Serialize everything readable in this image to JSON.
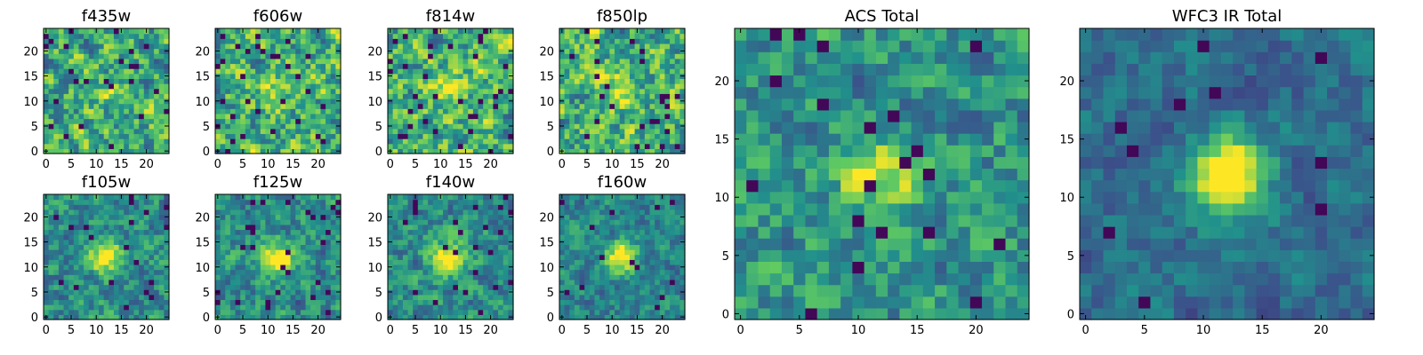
{
  "figure": {
    "colormap": [
      "#440154",
      "#3b528b",
      "#21918c",
      "#5ec962",
      "#fde725"
    ],
    "background": "#ffffff"
  },
  "chart_data": [
    {
      "type": "heatmap",
      "title": "f435w",
      "size": 25,
      "xlim": [
        0,
        25
      ],
      "ylim": [
        0,
        25
      ],
      "xticks": [
        "0",
        "5",
        "10",
        "15",
        "20"
      ],
      "yticks": [
        "0",
        "5",
        "10",
        "15",
        "20"
      ],
      "seed": 11,
      "blob": 0.15,
      "noise": 1.0,
      "low": 0.03
    },
    {
      "type": "heatmap",
      "title": "f606w",
      "size": 25,
      "xlim": [
        0,
        25
      ],
      "ylim": [
        0,
        25
      ],
      "xticks": [
        "0",
        "5",
        "10",
        "15",
        "20"
      ],
      "yticks": [
        "0",
        "5",
        "10",
        "15",
        "20"
      ],
      "seed": 23,
      "blob": 0.25,
      "noise": 1.0,
      "low": 0.04
    },
    {
      "type": "heatmap",
      "title": "f814w",
      "size": 25,
      "xlim": [
        0,
        25
      ],
      "ylim": [
        0,
        25
      ],
      "xticks": [
        "0",
        "5",
        "10",
        "15",
        "20"
      ],
      "yticks": [
        "0",
        "5",
        "10",
        "15",
        "20"
      ],
      "seed": 37,
      "blob": 0.35,
      "noise": 1.0,
      "low": 0.05
    },
    {
      "type": "heatmap",
      "title": "f850lp",
      "size": 25,
      "xlim": [
        0,
        25
      ],
      "ylim": [
        0,
        25
      ],
      "xticks": [
        "0",
        "5",
        "10",
        "15",
        "20"
      ],
      "yticks": [
        "0",
        "5",
        "10",
        "15",
        "20"
      ],
      "seed": 41,
      "blob": 0.35,
      "noise": 1.0,
      "low": 0.05
    },
    {
      "type": "heatmap",
      "title": "f105w",
      "size": 25,
      "xlim": [
        0,
        25
      ],
      "ylim": [
        0,
        25
      ],
      "xticks": [
        "0",
        "5",
        "10",
        "15",
        "20"
      ],
      "yticks": [
        "0",
        "5",
        "10",
        "15",
        "20"
      ],
      "seed": 53,
      "blob": 0.6,
      "noise": 0.7,
      "low": 0.03
    },
    {
      "type": "heatmap",
      "title": "f125w",
      "size": 25,
      "xlim": [
        0,
        25
      ],
      "ylim": [
        0,
        25
      ],
      "xticks": [
        "0",
        "5",
        "10",
        "15",
        "20"
      ],
      "yticks": [
        "0",
        "5",
        "10",
        "15",
        "20"
      ],
      "seed": 67,
      "blob": 0.6,
      "noise": 0.7,
      "low": 0.04
    },
    {
      "type": "heatmap",
      "title": "f140w",
      "size": 25,
      "xlim": [
        0,
        25
      ],
      "ylim": [
        0,
        25
      ],
      "xticks": [
        "0",
        "5",
        "10",
        "15",
        "20"
      ],
      "yticks": [
        "0",
        "5",
        "10",
        "15",
        "20"
      ],
      "seed": 71,
      "blob": 0.6,
      "noise": 0.7,
      "low": 0.04
    },
    {
      "type": "heatmap",
      "title": "f160w",
      "size": 25,
      "xlim": [
        0,
        25
      ],
      "ylim": [
        0,
        25
      ],
      "xticks": [
        "0",
        "5",
        "10",
        "15",
        "20"
      ],
      "yticks": [
        "0",
        "5",
        "10",
        "15",
        "20"
      ],
      "seed": 83,
      "blob": 0.7,
      "noise": 0.6,
      "low": 0.03
    },
    {
      "type": "heatmap",
      "title": "ACS Total",
      "size": 25,
      "xlim": [
        0,
        25
      ],
      "ylim": [
        0,
        25
      ],
      "xticks": [
        "0",
        "5",
        "10",
        "15",
        "20"
      ],
      "yticks": [
        "0",
        "5",
        "10",
        "15",
        "20"
      ],
      "seed": 97,
      "blob": 0.45,
      "noise": 0.75,
      "low": 0.03
    },
    {
      "type": "heatmap",
      "title": "WFC3 IR Total",
      "size": 25,
      "xlim": [
        0,
        25
      ],
      "ylim": [
        0,
        25
      ],
      "xticks": [
        "0",
        "5",
        "10",
        "15",
        "20"
      ],
      "yticks": [
        "0",
        "5",
        "10",
        "15",
        "20"
      ],
      "seed": 101,
      "blob": 0.9,
      "noise": 0.45,
      "low": 0.02
    }
  ]
}
